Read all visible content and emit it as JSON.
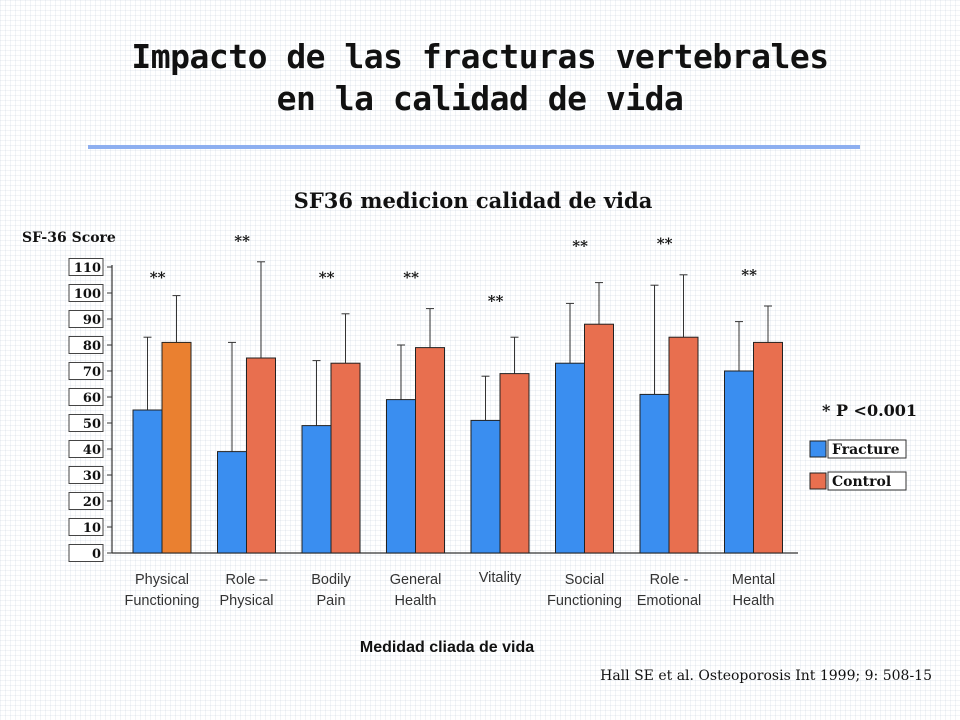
{
  "slide": {
    "title_line1": "Impacto de las fracturas vertebrales",
    "title_line2": "en la calidad de vida",
    "citation": "Hall SE et al.  Osteoporosis Int 1999; 9: 508-15",
    "rule_color": "#8eaff0"
  },
  "chart_data": {
    "type": "bar",
    "title": "SF36 medicion calidad de vida",
    "ylabel": "SF-36 Score",
    "xlabel": "Medidad cliada de vida",
    "ylim": [
      0,
      110
    ],
    "yticks": [
      "0",
      "10",
      "20",
      "30",
      "40",
      "50",
      "60",
      "70",
      "80",
      "90",
      "100",
      "110"
    ],
    "categories": [
      [
        "Physical",
        "Functioning"
      ],
      [
        "Role –",
        "Physical"
      ],
      [
        "Bodily",
        "Pain"
      ],
      [
        "General",
        "Health"
      ],
      [
        "Vitality"
      ],
      [
        "Social",
        "Functioning"
      ],
      [
        "Role -",
        "Emotional"
      ],
      [
        "Mental",
        "Health"
      ]
    ],
    "series": [
      {
        "name": "Fracture",
        "color": "#3a8ef0",
        "values": [
          55,
          39,
          49,
          59,
          51,
          73,
          61,
          70
        ],
        "error_upper": [
          83,
          81,
          74,
          80,
          68,
          96,
          103,
          89
        ]
      },
      {
        "name": "Control",
        "color": "#e86f4f",
        "values": [
          81,
          75,
          73,
          79,
          69,
          88,
          83,
          81
        ],
        "error_upper": [
          99,
          112,
          92,
          94,
          83,
          104,
          107,
          95
        ]
      }
    ],
    "first_control_bar_color": "#ea8030",
    "significance_labels": [
      "**",
      "**",
      "**",
      "**",
      "**",
      "**",
      "**",
      "**"
    ],
    "significance_y": [
      106,
      120,
      106,
      106,
      97,
      118,
      119,
      107
    ],
    "legend_position": "right",
    "p_value_note": "* P <0.001",
    "grid": false
  }
}
